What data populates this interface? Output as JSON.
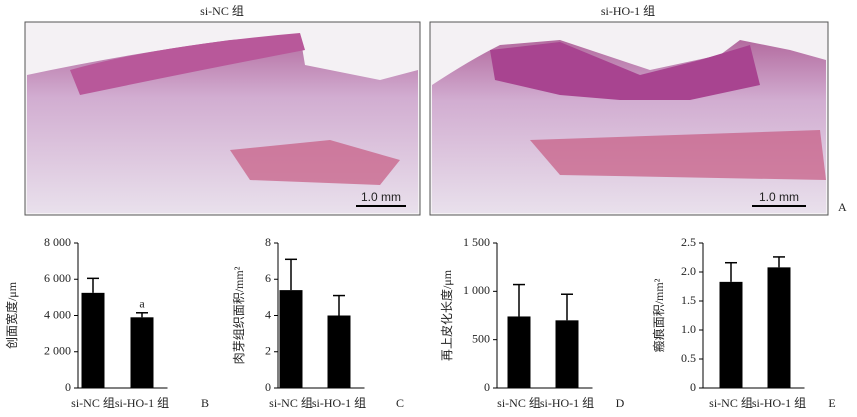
{
  "images": [
    {
      "title": "si-NC 组",
      "scale_label": "1.0 mm"
    },
    {
      "title": "si-HO-1 组",
      "scale_label": "1.0 mm"
    }
  ],
  "image_panel_letter": "A",
  "chart_data": [
    {
      "type": "bar",
      "panel_letter": "B",
      "y_label": "创面宽度/μm",
      "categories": [
        "si-NC 组",
        "si-HO-1 组"
      ],
      "values": [
        5250,
        3900
      ],
      "error": [
        800,
        250
      ],
      "significance": [
        null,
        "a"
      ],
      "color": "#000000",
      "ylim": [
        0,
        8000
      ],
      "yticks": [
        0,
        {
          "value": 2000,
          "label": "2 000"
        },
        {
          "value": 4000,
          "label": "4 000"
        },
        {
          "value": 6000,
          "label": "6 000"
        },
        {
          "value": 8000,
          "label": "8 000"
        }
      ]
    },
    {
      "type": "bar",
      "panel_letter": "C",
      "y_label": "肉芽组织面积/mm²",
      "categories": [
        "si-NC 组",
        "si-HO-1 组"
      ],
      "values": [
        5.4,
        4.0
      ],
      "error": [
        1.7,
        1.1
      ],
      "color": "#000000",
      "ylim": [
        0,
        8
      ],
      "yticks": [
        0,
        2,
        4,
        6,
        8
      ]
    },
    {
      "type": "bar",
      "panel_letter": "D",
      "y_label": "再上皮化长度/μm",
      "categories": [
        "si-NC 组",
        "si-HO-1 组"
      ],
      "values": [
        740,
        700
      ],
      "error": [
        330,
        270
      ],
      "color": "#000000",
      "ylim": [
        0,
        1500
      ],
      "yticks": [
        0,
        500,
        {
          "value": 1000,
          "label": "1 000"
        },
        {
          "value": 1500,
          "label": "1 500"
        }
      ]
    },
    {
      "type": "bar",
      "panel_letter": "E",
      "y_label": "瘢痕面积/mm²",
      "categories": [
        "si-NC 组",
        "si-HO-1 组"
      ],
      "values": [
        1.83,
        2.08
      ],
      "error": [
        0.33,
        0.18
      ],
      "color": "#000000",
      "ylim": [
        0,
        2.5
      ],
      "yticks": [
        0,
        0.5,
        {
          "value": 1,
          "label": "1.0"
        },
        {
          "value": 1.5,
          "label": "1.5"
        },
        {
          "value": 2,
          "label": "2.0"
        },
        {
          "value": 2.5,
          "label": "2.5"
        }
      ]
    }
  ]
}
